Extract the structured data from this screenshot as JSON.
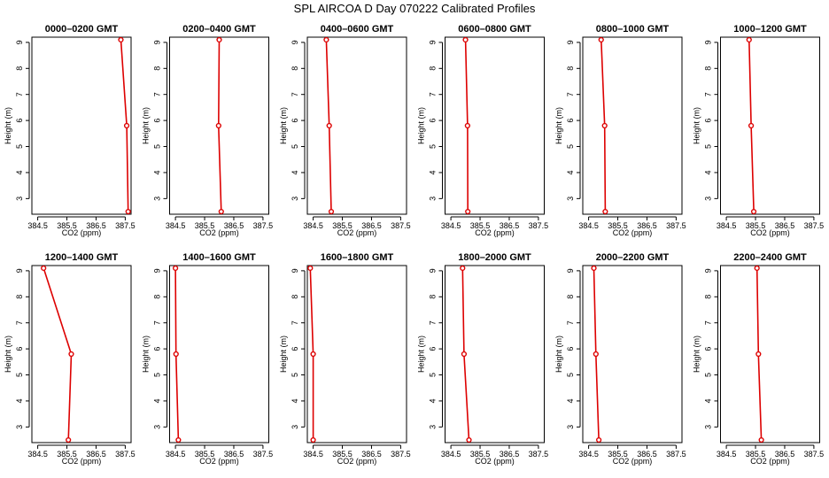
{
  "title": "SPL AIRCOA D  Day 070222  Calibrated Profiles",
  "colors": {
    "series": "#dd0000",
    "axis": "#000000",
    "background": "#ffffff"
  },
  "chart_data": [
    {
      "type": "line",
      "title": "0000–0200 GMT",
      "xlabel": "CO2 (ppm)",
      "ylabel": "Height (m)",
      "xlim": [
        384.3,
        387.7
      ],
      "ylim": [
        2.4,
        9.2
      ],
      "xticks": [
        "384.5",
        "385.5",
        "386.5",
        "387.5"
      ],
      "yticks": [
        "3",
        "4",
        "5",
        "6",
        "7",
        "8",
        "9"
      ],
      "points": [
        {
          "x": 387.35,
          "y": 9.1
        },
        {
          "x": 387.55,
          "y": 5.8
        },
        {
          "x": 387.6,
          "y": 2.5
        }
      ]
    },
    {
      "type": "line",
      "title": "0200–0400 GMT",
      "xlabel": "CO2 (ppm)",
      "ylabel": "Height (m)",
      "xlim": [
        384.3,
        387.7
      ],
      "ylim": [
        2.4,
        9.2
      ],
      "xticks": [
        "384.5",
        "385.5",
        "386.5",
        "387.5"
      ],
      "yticks": [
        "3",
        "4",
        "5",
        "6",
        "7",
        "8",
        "9"
      ],
      "points": [
        {
          "x": 386.0,
          "y": 9.1
        },
        {
          "x": 385.98,
          "y": 5.8
        },
        {
          "x": 386.07,
          "y": 2.5
        }
      ]
    },
    {
      "type": "line",
      "title": "0400–0600 GMT",
      "xlabel": "CO2 (ppm)",
      "ylabel": "Height (m)",
      "xlim": [
        384.3,
        387.7
      ],
      "ylim": [
        2.4,
        9.2
      ],
      "xticks": [
        "384.5",
        "385.5",
        "386.5",
        "387.5"
      ],
      "yticks": [
        "3",
        "4",
        "5",
        "6",
        "7",
        "8",
        "9"
      ],
      "points": [
        {
          "x": 384.95,
          "y": 9.1
        },
        {
          "x": 385.05,
          "y": 5.8
        },
        {
          "x": 385.12,
          "y": 2.5
        }
      ]
    },
    {
      "type": "line",
      "title": "0600–0800 GMT",
      "xlabel": "CO2 (ppm)",
      "ylabel": "Height (m)",
      "xlim": [
        384.3,
        387.7
      ],
      "ylim": [
        2.4,
        9.2
      ],
      "xticks": [
        "384.5",
        "385.5",
        "386.5",
        "387.5"
      ],
      "yticks": [
        "3",
        "4",
        "5",
        "6",
        "7",
        "8",
        "9"
      ],
      "points": [
        {
          "x": 385.0,
          "y": 9.1
        },
        {
          "x": 385.07,
          "y": 5.8
        },
        {
          "x": 385.08,
          "y": 2.5
        }
      ]
    },
    {
      "type": "line",
      "title": "0800–1000 GMT",
      "xlabel": "CO2 (ppm)",
      "ylabel": "Height (m)",
      "xlim": [
        384.3,
        387.7
      ],
      "ylim": [
        2.4,
        9.2
      ],
      "xticks": [
        "384.5",
        "385.5",
        "386.5",
        "387.5"
      ],
      "yticks": [
        "3",
        "4",
        "5",
        "6",
        "7",
        "8",
        "9"
      ],
      "points": [
        {
          "x": 384.93,
          "y": 9.1
        },
        {
          "x": 385.05,
          "y": 5.8
        },
        {
          "x": 385.07,
          "y": 2.5
        }
      ]
    },
    {
      "type": "line",
      "title": "1000–1200 GMT",
      "xlabel": "CO2 (ppm)",
      "ylabel": "Height (m)",
      "xlim": [
        384.3,
        387.7
      ],
      "ylim": [
        2.4,
        9.2
      ],
      "xticks": [
        "384.5",
        "385.5",
        "386.5",
        "387.5"
      ],
      "yticks": [
        "3",
        "4",
        "5",
        "6",
        "7",
        "8",
        "9"
      ],
      "points": [
        {
          "x": 385.28,
          "y": 9.1
        },
        {
          "x": 385.35,
          "y": 5.8
        },
        {
          "x": 385.44,
          "y": 2.5
        }
      ]
    },
    {
      "type": "line",
      "title": "1200–1400 GMT",
      "xlabel": "CO2 (ppm)",
      "ylabel": "Height (m)",
      "xlim": [
        384.3,
        387.7
      ],
      "ylim": [
        2.4,
        9.2
      ],
      "xticks": [
        "384.5",
        "385.5",
        "386.5",
        "387.5"
      ],
      "yticks": [
        "3",
        "4",
        "5",
        "6",
        "7",
        "8",
        "9"
      ],
      "points": [
        {
          "x": 384.7,
          "y": 9.1
        },
        {
          "x": 385.65,
          "y": 5.8
        },
        {
          "x": 385.55,
          "y": 2.5
        }
      ]
    },
    {
      "type": "line",
      "title": "1400–1600 GMT",
      "xlabel": "CO2 (ppm)",
      "ylabel": "Height (m)",
      "xlim": [
        384.3,
        387.7
      ],
      "ylim": [
        2.4,
        9.2
      ],
      "xticks": [
        "384.5",
        "385.5",
        "386.5",
        "387.5"
      ],
      "yticks": [
        "3",
        "4",
        "5",
        "6",
        "7",
        "8",
        "9"
      ],
      "points": [
        {
          "x": 384.5,
          "y": 9.1
        },
        {
          "x": 384.52,
          "y": 5.8
        },
        {
          "x": 384.6,
          "y": 2.5
        }
      ]
    },
    {
      "type": "line",
      "title": "1600–1800 GMT",
      "xlabel": "CO2 (ppm)",
      "ylabel": "Height (m)",
      "xlim": [
        384.3,
        387.7
      ],
      "ylim": [
        2.4,
        9.2
      ],
      "xticks": [
        "384.5",
        "385.5",
        "386.5",
        "387.5"
      ],
      "yticks": [
        "3",
        "4",
        "5",
        "6",
        "7",
        "8",
        "9"
      ],
      "points": [
        {
          "x": 384.4,
          "y": 9.1
        },
        {
          "x": 384.5,
          "y": 5.8
        },
        {
          "x": 384.5,
          "y": 2.5
        }
      ]
    },
    {
      "type": "line",
      "title": "1800–2000 GMT",
      "xlabel": "CO2 (ppm)",
      "ylabel": "Height (m)",
      "xlim": [
        384.3,
        387.7
      ],
      "ylim": [
        2.4,
        9.2
      ],
      "xticks": [
        "384.5",
        "385.5",
        "386.5",
        "387.5"
      ],
      "yticks": [
        "3",
        "4",
        "5",
        "6",
        "7",
        "8",
        "9"
      ],
      "points": [
        {
          "x": 384.9,
          "y": 9.1
        },
        {
          "x": 384.95,
          "y": 5.8
        },
        {
          "x": 385.12,
          "y": 2.5
        }
      ]
    },
    {
      "type": "line",
      "title": "2000–2200 GMT",
      "xlabel": "CO2 (ppm)",
      "ylabel": "Height (m)",
      "xlim": [
        384.3,
        387.7
      ],
      "ylim": [
        2.4,
        9.2
      ],
      "xticks": [
        "384.5",
        "385.5",
        "386.5",
        "387.5"
      ],
      "yticks": [
        "3",
        "4",
        "5",
        "6",
        "7",
        "8",
        "9"
      ],
      "points": [
        {
          "x": 384.68,
          "y": 9.1
        },
        {
          "x": 384.75,
          "y": 5.8
        },
        {
          "x": 384.85,
          "y": 2.5
        }
      ]
    },
    {
      "type": "line",
      "title": "2200–2400 GMT",
      "xlabel": "CO2 (ppm)",
      "ylabel": "Height (m)",
      "xlim": [
        384.3,
        387.7
      ],
      "ylim": [
        2.4,
        9.2
      ],
      "xticks": [
        "384.5",
        "385.5",
        "386.5",
        "387.5"
      ],
      "yticks": [
        "3",
        "4",
        "5",
        "6",
        "7",
        "8",
        "9"
      ],
      "points": [
        {
          "x": 385.55,
          "y": 9.1
        },
        {
          "x": 385.6,
          "y": 5.8
        },
        {
          "x": 385.7,
          "y": 2.5
        }
      ]
    }
  ]
}
